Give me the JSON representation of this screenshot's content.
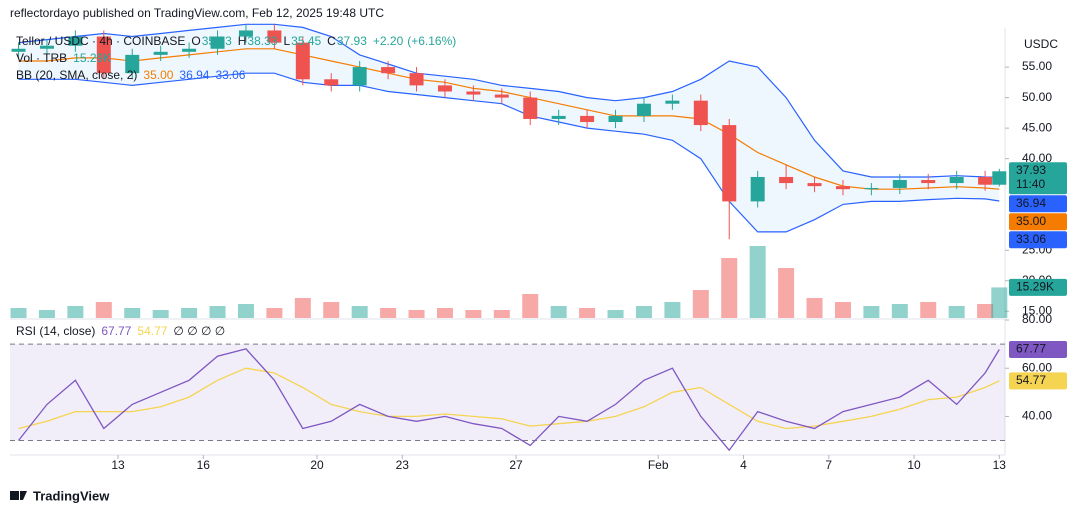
{
  "header": "reflectordayo published on TradingView.com, Feb 12, 2025 19:48 UTC",
  "footer": "TradingView",
  "chart_data": {
    "type": "candlestick",
    "symbol": "Tellor / USDC · 4h · COINBASE",
    "legend_fields": [
      {
        "label": "O",
        "value": 35.73
      },
      {
        "label": "H",
        "value": 38.33
      },
      {
        "label": "L",
        "value": 35.45
      },
      {
        "label": "C",
        "value": 37.93
      }
    ],
    "change": {
      "value": 2.2,
      "label": "+2.20"
    },
    "change_pct": {
      "value": 6.16,
      "label": "(+6.16%)"
    },
    "currency": "USDC",
    "countdown": "11:40",
    "up_color": "#26a69a",
    "down_color": "#ef5350",
    "x": [
      9.5,
      10.5,
      11.5,
      12.5,
      13.5,
      14.5,
      15.5,
      16.5,
      17.5,
      18.5,
      19.5,
      20.5,
      21.5,
      22.5,
      23.5,
      24.5,
      25.5,
      26.5,
      27.5,
      28.5,
      29.5,
      30.5,
      31.5,
      32.5,
      33.5,
      34.5,
      35.5,
      36.5,
      37.5,
      38.5,
      39.5,
      40.5,
      41.5,
      42.5,
      43.5,
      44
    ],
    "open": [
      57.5,
      58,
      58.5,
      60,
      54,
      57,
      57.5,
      58,
      60,
      61,
      59,
      53,
      52,
      55,
      54,
      52,
      51,
      50.5,
      50,
      46.5,
      47,
      46,
      47,
      49,
      49.5,
      45.5,
      33,
      37,
      36,
      35.5,
      35,
      35.2,
      36.5,
      36,
      37,
      35.73
    ],
    "high": [
      59,
      59.5,
      61,
      61,
      58,
      58.5,
      59,
      61,
      62,
      62,
      60,
      54,
      56,
      56,
      55,
      53,
      52,
      51.5,
      51,
      48,
      48,
      48,
      50,
      50.5,
      50.5,
      46.5,
      38,
      39,
      37,
      36.5,
      36,
      37.5,
      37.5,
      38,
      38,
      38.33
    ],
    "low": [
      56.5,
      57,
      57.5,
      53,
      53,
      56,
      56.5,
      57,
      59,
      58,
      52,
      51,
      51,
      53,
      51,
      50,
      49.5,
      49,
      45.5,
      45.5,
      45,
      45,
      46,
      48,
      44.5,
      26.8,
      32,
      35,
      34.5,
      34,
      34,
      34.2,
      35,
      35,
      34.73,
      35.45
    ],
    "close": [
      58,
      58.5,
      60,
      54,
      57,
      57.5,
      58,
      60,
      61,
      59,
      53,
      52,
      55,
      54,
      52,
      51,
      50.5,
      50,
      46.5,
      47,
      46,
      47,
      49,
      49.5,
      45.5,
      33,
      37,
      36,
      35.5,
      35,
      35.2,
      36.5,
      36,
      37,
      35.73,
      37.93
    ],
    "xlim": [
      9.2,
      44.2
    ],
    "xticks": [
      13,
      16,
      20,
      23,
      27,
      {
        "value": 32,
        "label": "Feb"
      },
      {
        "value": 35,
        "label": "4"
      },
      {
        "value": 38,
        "label": "7"
      },
      {
        "value": 41,
        "label": "10"
      },
      {
        "value": 44,
        "label": "13"
      }
    ],
    "ylim": [
      13.9,
      61.4
    ],
    "yticks": [
      {
        "value": 55,
        "label": "55.00"
      },
      {
        "value": 50,
        "label": "50.00"
      },
      {
        "value": 45,
        "label": "45.00"
      },
      {
        "value": 40,
        "label": "40.00"
      },
      {
        "value": 25,
        "label": "25.00"
      },
      {
        "value": 20,
        "label": "20.00"
      },
      {
        "value": 15,
        "label": "15.00"
      }
    ],
    "volume": {
      "name": "Vol · TRB",
      "values": [
        5,
        4,
        6,
        8,
        5,
        4,
        5,
        6,
        7,
        5,
        10,
        8,
        6,
        5,
        4,
        5,
        4,
        4,
        12,
        6,
        5,
        4,
        6,
        8,
        14,
        30,
        36,
        25,
        10,
        8,
        6,
        7,
        8,
        6,
        7,
        15.29
      ],
      "value_label": "15.29K"
    },
    "bb": {
      "name": "BB (20, SMA, close, 2)",
      "upper_color": "#2962ff",
      "basis_color": "#f57c00",
      "basis": [
        56,
        56,
        56.5,
        56.5,
        56,
        56.5,
        57,
        57.5,
        58,
        58,
        57,
        56,
        55,
        54,
        53,
        52.5,
        51.5,
        51,
        50,
        49,
        48,
        47,
        47,
        47,
        46.5,
        44,
        41,
        39,
        37,
        35.5,
        35,
        35,
        35.2,
        35.4,
        35.2,
        35
      ],
      "upper": [
        59,
        59.5,
        60,
        60.5,
        60,
        60.5,
        61,
        61.5,
        62,
        62,
        61.5,
        60,
        57,
        55.5,
        54,
        53.5,
        53,
        52,
        51.5,
        51,
        50,
        49.5,
        50,
        51,
        53,
        56,
        55,
        50,
        43,
        38,
        37,
        37,
        37,
        37.2,
        37,
        36.94
      ],
      "lower": [
        53,
        53,
        53,
        52.5,
        52,
        52.5,
        53,
        53.5,
        54,
        54,
        52.5,
        52,
        52,
        51,
        50.5,
        50,
        49.5,
        49,
        47,
        46,
        45,
        44.5,
        44,
        43,
        40,
        33,
        28,
        28,
        30,
        32.5,
        33,
        33,
        33.3,
        33.5,
        33.4,
        33.06
      ],
      "basis_label": "35.00",
      "upper_label": "36.94",
      "lower_label": "33.06"
    },
    "rsi": {
      "name": "RSI (14, close)",
      "color": "#7e57c2",
      "ma_color": "#f5d451",
      "values": [
        30,
        45,
        55,
        35,
        45,
        50,
        55,
        65,
        68,
        55,
        35,
        38,
        45,
        40,
        38,
        40,
        37,
        35,
        28,
        40,
        38,
        45,
        55,
        60,
        40,
        26,
        42,
        38,
        35,
        42,
        45,
        48,
        55,
        45,
        58,
        67.77
      ],
      "ma": [
        35,
        38,
        42,
        42,
        42,
        44,
        48,
        55,
        60,
        58,
        52,
        45,
        42,
        40,
        40,
        41,
        40,
        39,
        36,
        37,
        38,
        40,
        44,
        50,
        52,
        45,
        38,
        35,
        36,
        38,
        40,
        43,
        47,
        48,
        52,
        54.77
      ],
      "extra": "∅ ∅ ∅ ∅",
      "ylim": [
        24,
        80
      ],
      "yticks": [
        {
          "value": 80,
          "label": "80.00"
        },
        {
          "value": 60,
          "label": "60.00"
        },
        {
          "value": 40,
          "label": "40.00"
        }
      ],
      "bands": [
        30,
        70
      ]
    }
  }
}
